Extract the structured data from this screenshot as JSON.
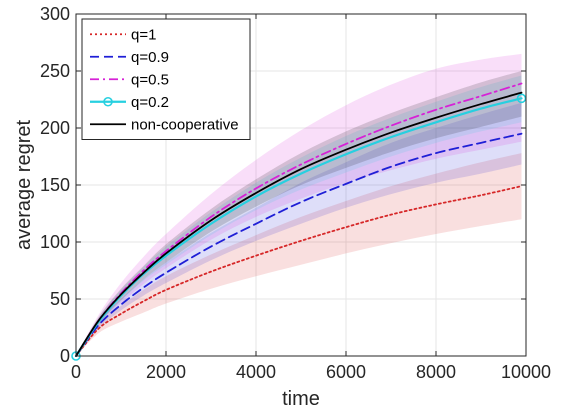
{
  "chart_data": {
    "type": "line",
    "xlabel": "time",
    "ylabel": "average regret",
    "xlim": [
      0,
      10000
    ],
    "ylim": [
      0,
      300
    ],
    "xticks": [
      0,
      2000,
      4000,
      6000,
      8000,
      10000
    ],
    "yticks": [
      0,
      50,
      100,
      150,
      200,
      250,
      300
    ],
    "grid": true,
    "legend_position": "top-left",
    "x": [
      0,
      500,
      1000,
      1500,
      2000,
      3000,
      4000,
      5000,
      6000,
      7000,
      8000,
      9000,
      9900
    ],
    "series": [
      {
        "name": "q=1",
        "color": "#d62728",
        "style": "dotted",
        "values": [
          0,
          24,
          37,
          48,
          58,
          74,
          88,
          101,
          113,
          124,
          133,
          141,
          149
        ],
        "band_low": [
          0,
          20,
          30,
          38,
          46,
          59,
          70,
          80,
          90,
          99,
          107,
          114,
          120
        ],
        "band_high": [
          0,
          28,
          44,
          58,
          70,
          89,
          106,
          122,
          136,
          149,
          160,
          170,
          178
        ]
      },
      {
        "name": "q=0.9",
        "color": "#1f1fd6",
        "style": "dashed",
        "values": [
          0,
          27,
          45,
          60,
          73,
          96,
          116,
          135,
          151,
          166,
          178,
          187,
          195
        ],
        "band_low": [
          0,
          24,
          40,
          53,
          64,
          84,
          101,
          116,
          130,
          142,
          152,
          160,
          168
        ],
        "band_high": [
          0,
          30,
          50,
          67,
          82,
          108,
          130,
          152,
          170,
          187,
          200,
          212,
          222
        ]
      },
      {
        "name": "q=0.5",
        "color": "#d622d6",
        "style": "dashdot",
        "values": [
          0,
          31,
          55,
          75,
          92,
          122,
          147,
          168,
          186,
          202,
          216,
          228,
          239
        ],
        "band_low": [
          0,
          26,
          46,
          63,
          77,
          102,
          122,
          138,
          152,
          163,
          173,
          181,
          188
        ],
        "band_high": [
          0,
          36,
          64,
          87,
          107,
          142,
          172,
          198,
          220,
          238,
          252,
          260,
          265
        ]
      },
      {
        "name": "q=0.2",
        "color": "#27d0e0",
        "style": "solid-markers",
        "values": [
          0,
          30,
          53,
          72,
          88,
          116,
          140,
          160,
          177,
          192,
          205,
          217,
          226
        ],
        "band_low": [
          0,
          27,
          48,
          66,
          80,
          106,
          128,
          146,
          161,
          175,
          187,
          197,
          205
        ],
        "band_high": [
          0,
          33,
          58,
          78,
          96,
          126,
          152,
          174,
          193,
          209,
          223,
          236,
          246
        ]
      },
      {
        "name": "non-cooperative",
        "color": "#000000",
        "style": "solid",
        "values": [
          0,
          31,
          54,
          73,
          90,
          119,
          143,
          164,
          181,
          196,
          209,
          221,
          231
        ],
        "band_low": [
          0,
          28,
          49,
          67,
          82,
          109,
          131,
          150,
          165,
          179,
          191,
          201,
          210
        ],
        "band_high": [
          0,
          34,
          59,
          79,
          98,
          129,
          155,
          178,
          197,
          213,
          227,
          240,
          250
        ]
      }
    ]
  }
}
